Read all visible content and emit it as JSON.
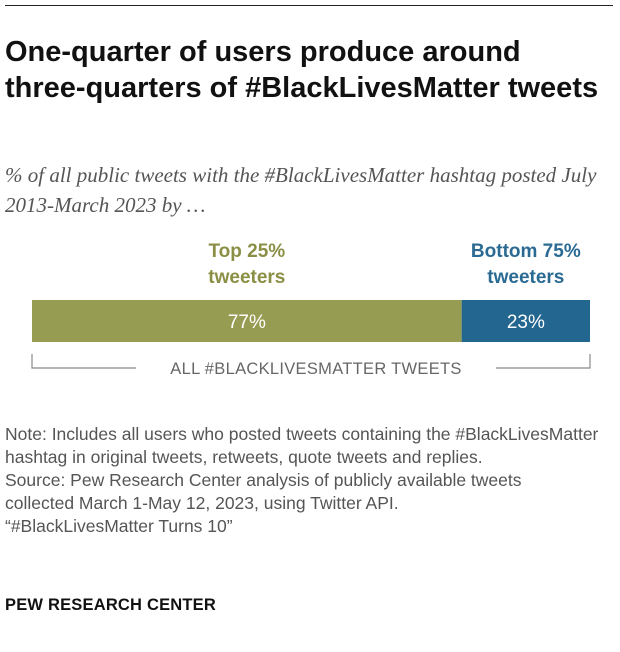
{
  "title": "One-quarter of users produce around three-quarters of #BlackLivesMatter tweets",
  "subtitle": "% of all public tweets with the #BlackLivesMatter hashtag posted July 2013-March 2023 by …",
  "chart_data": {
    "type": "bar",
    "orientation": "horizontal-stacked",
    "total": 100,
    "series": [
      {
        "name": "Top 25% tweeters",
        "label_lines": [
          "Top 25%",
          "tweeters"
        ],
        "value": 77,
        "value_label": "77%",
        "color": "#979c53",
        "label_color": "#8a8f45"
      },
      {
        "name": "Bottom 75% tweeters",
        "label_lines": [
          "Bottom 75%",
          "tweeters"
        ],
        "value": 23,
        "value_label": "23%",
        "color": "#23668f",
        "label_color": "#2a6a93"
      }
    ],
    "bracket_label": "ALL #BLACKLIVESMATTER TWEETS"
  },
  "notes": {
    "note": "Note: Includes all users who posted tweets containing the #BlackLivesMatter hashtag in original tweets, retweets, quote tweets and replies.",
    "source_lines": [
      "Source: Pew Research Center analysis of publicly available tweets",
      "collected March 1-May 12, 2023, using Twitter API.",
      "“#BlackLivesMatter Turns 10”"
    ]
  },
  "brand": "PEW RESEARCH CENTER"
}
